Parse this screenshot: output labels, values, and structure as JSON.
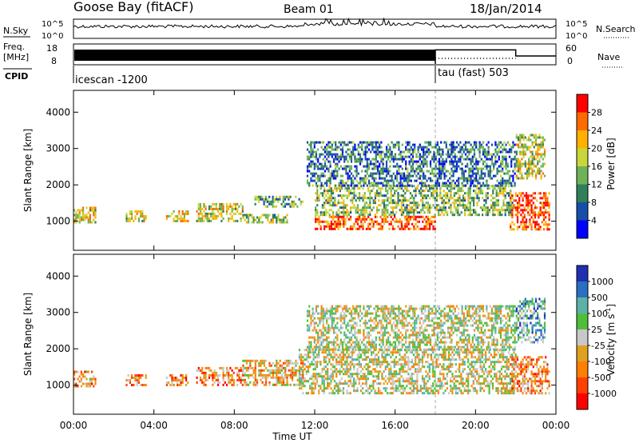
{
  "header": {
    "title": "Goose Bay (fitACF)",
    "beam": "Beam 01",
    "date": "18/Jan/2014"
  },
  "meta_panel": {
    "left_labels": {
      "nsky": "N.Sky",
      "freq": "Freq.",
      "freq_unit": "[MHz]",
      "cpid": "CPID"
    },
    "right_labels": {
      "nsearch": "N.Search",
      "nave": "Nave"
    },
    "noise_axis": {
      "left_ticks": [
        "10^5",
        "10^0"
      ],
      "right_ticks": [
        "10^5",
        "10^0"
      ]
    },
    "freq_axis": {
      "ticks": [
        "18",
        "8"
      ],
      "range_mhz": [
        8,
        18
      ]
    },
    "nave_axis": {
      "ticks": [
        "60",
        "0"
      ],
      "range": [
        0,
        60
      ]
    },
    "cpid_segments": [
      {
        "label": "icescan -1200",
        "start_hour": 0.0,
        "end_hour": 18.0
      },
      {
        "label": "tau (fast) 503",
        "start_hour": 18.0,
        "end_hour": 24.0
      }
    ],
    "nave_steps": [
      {
        "start_hour": 18.0,
        "end_hour": 22.0,
        "value": 44
      },
      {
        "start_hour": 22.0,
        "end_hour": 24.0,
        "value": 25
      }
    ]
  },
  "chart_data": [
    {
      "type": "heatmap",
      "name": "power",
      "ylabel": "Slant Range [km]",
      "xlabel": "Time UT",
      "xlim": [
        0,
        24
      ],
      "ylim": [
        200,
        4600
      ],
      "x_ticks": [
        "00:00",
        "04:00",
        "08:00",
        "12:00",
        "16:00",
        "20:00",
        "00:00"
      ],
      "y_ticks": [
        1000,
        2000,
        3000,
        4000
      ],
      "colorbar": {
        "label": "Power [dB]",
        "ticks": [
          28,
          24,
          20,
          16,
          12,
          8,
          4
        ],
        "colors": [
          "#ff0000",
          "#ff6a00",
          "#ffb000",
          "#c9d63a",
          "#6eb456",
          "#2f7f5a",
          "#174ea8",
          "#0000ff"
        ]
      },
      "regions": [
        {
          "t0": 0.0,
          "t1": 1.1,
          "r0": 950,
          "r1": 1400,
          "level": 0.62
        },
        {
          "t0": 2.6,
          "t1": 3.6,
          "r0": 1000,
          "r1": 1300,
          "level": 0.55
        },
        {
          "t0": 4.6,
          "t1": 5.7,
          "r0": 1000,
          "r1": 1300,
          "level": 0.6
        },
        {
          "t0": 6.1,
          "t1": 8.4,
          "r0": 1000,
          "r1": 1500,
          "level": 0.58
        },
        {
          "t0": 8.4,
          "t1": 10.6,
          "r0": 1000,
          "r1": 1200,
          "level": 0.48
        },
        {
          "t0": 9.0,
          "t1": 11.4,
          "r0": 1400,
          "r1": 1700,
          "level": 0.4
        },
        {
          "t0": 12.0,
          "t1": 18.0,
          "r0": 780,
          "r1": 1150,
          "level": 0.85
        },
        {
          "t0": 12.0,
          "t1": 21.8,
          "r0": 1150,
          "r1": 2000,
          "level": 0.45
        },
        {
          "t0": 11.6,
          "t1": 22.0,
          "r0": 2000,
          "r1": 3200,
          "level": 0.28
        },
        {
          "t0": 21.7,
          "t1": 23.7,
          "r0": 800,
          "r1": 1800,
          "level": 0.85
        },
        {
          "t0": 22.0,
          "t1": 23.4,
          "r0": 2200,
          "r1": 3400,
          "level": 0.55
        }
      ]
    },
    {
      "type": "heatmap",
      "name": "velocity",
      "ylabel": "Slant Range [km]",
      "xlabel": "Time UT",
      "xlim": [
        0,
        24
      ],
      "ylim": [
        200,
        4600
      ],
      "x_ticks": [
        "00:00",
        "04:00",
        "08:00",
        "12:00",
        "16:00",
        "20:00",
        "00:00"
      ],
      "y_ticks": [
        1000,
        2000,
        3000,
        4000
      ],
      "colorbar": {
        "label": "Velocity [m s",
        "label_sup": "-1",
        "label_end": "]",
        "ticks": [
          1000,
          500,
          100,
          25,
          -25,
          -100,
          -500,
          -1000
        ],
        "colors": [
          "#1f2fb0",
          "#2a6fc2",
          "#5bb2a8",
          "#4fbf3a",
          "#c8c8c8",
          "#e0a020",
          "#ff7f00",
          "#ff4000",
          "#ff0000"
        ]
      },
      "regions": [
        {
          "t0": 0.0,
          "t1": 1.1,
          "r0": 950,
          "r1": 1400,
          "level": 0.68
        },
        {
          "t0": 2.6,
          "t1": 3.6,
          "r0": 1000,
          "r1": 1300,
          "level": 0.7
        },
        {
          "t0": 4.6,
          "t1": 5.7,
          "r0": 1000,
          "r1": 1300,
          "level": 0.72
        },
        {
          "t0": 6.1,
          "t1": 8.4,
          "r0": 1000,
          "r1": 1500,
          "level": 0.7
        },
        {
          "t0": 8.4,
          "t1": 11.4,
          "r0": 1000,
          "r1": 1700,
          "level": 0.6
        },
        {
          "t0": 11.2,
          "t1": 22.0,
          "r0": 780,
          "r1": 2000,
          "level": 0.5
        },
        {
          "t0": 11.6,
          "t1": 22.0,
          "r0": 2000,
          "r1": 3200,
          "level": 0.48
        },
        {
          "t0": 21.7,
          "t1": 23.7,
          "r0": 800,
          "r1": 1800,
          "level": 0.7
        },
        {
          "t0": 22.0,
          "t1": 23.4,
          "r0": 2200,
          "r1": 3400,
          "level": 0.32
        }
      ]
    }
  ]
}
